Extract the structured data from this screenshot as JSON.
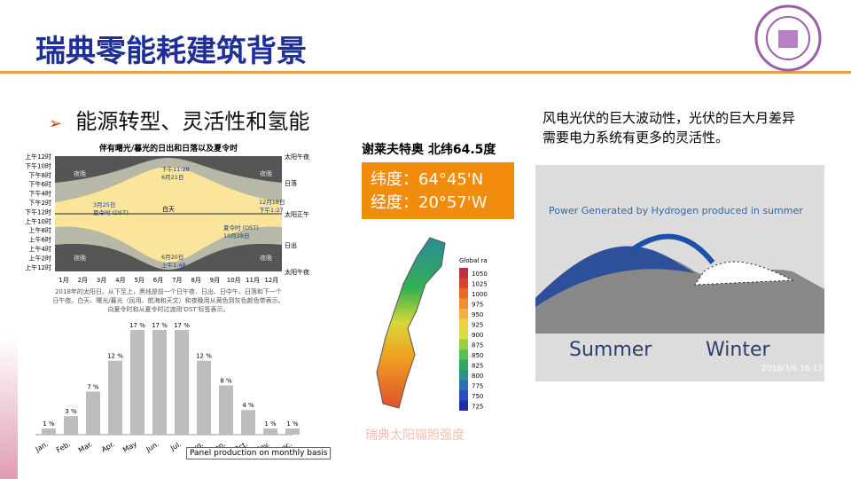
{
  "header": {
    "title": "瑞典零能耗建筑背景"
  },
  "bullet": "能源转型、灵活性和氢能",
  "daylight_chart": {
    "title": "伴有曙光/暮光的日出和日落以及夏令时",
    "left_labels": [
      "上午12时",
      "下午10时",
      "下午8时",
      "下午6时",
      "下午4时",
      "下午2时",
      "下午12时",
      "上午10时",
      "上午8时",
      "上午6时",
      "上午4时",
      "上午2时",
      "上午12时"
    ],
    "right_labels": [
      "太阳午夜",
      "日落",
      "太阳正午",
      "日出",
      "太阳午夜"
    ],
    "months": [
      "1月",
      "2月",
      "3月",
      "4月",
      "5月",
      "6月",
      "7月",
      "8月",
      "9月",
      "10月",
      "11月",
      "12月"
    ],
    "night": "夜晚",
    "day": "白天",
    "notes": [
      "下午11:28",
      "6月21日",
      "3月25日",
      "夏令时 (DST)",
      "夏令时 (DST)",
      "10月28日",
      "12月18日",
      "下午1:27",
      "6月20日",
      "上午1:48"
    ],
    "caption": [
      "2018年的太阳日。从下至上，黑线是前一个日午夜、日出、日中午、日落和下一个",
      "日午夜。白天、曙光/暮光（民用、航海和天文）和夜晚用从黄色到灰色颜色带表示。",
      "向夏令时和从夏令时过渡用'DST'标签表示。"
    ]
  },
  "monthly_chart": {
    "categories": [
      "Jan.",
      "Feb.",
      "Mar.",
      "Apr.",
      "May",
      "Jun.",
      "Jul.",
      "Aug.",
      "Sep.",
      "Oct.",
      "Nov.",
      "Dec."
    ],
    "values": [
      1,
      3,
      7,
      12,
      17,
      17,
      17,
      12,
      8,
      4,
      1,
      1
    ],
    "value_labels": [
      "1 %",
      "3 %",
      "7 %",
      "12 %",
      "17 %",
      "17 %",
      "17 %",
      "12 %",
      "8 %",
      "4 %",
      "1 %",
      "1 %"
    ],
    "caption": "Panel production on monthly basis"
  },
  "map": {
    "title": "谢莱夫特奥 北纬64.5度",
    "latitude": "纬度：64°45'N",
    "longitude": "经度：20°57'W",
    "legend_title": "Global ra",
    "legend": [
      "1050",
      "1025",
      "1000",
      "975",
      "950",
      "925",
      "900",
      "875",
      "850",
      "825",
      "800",
      "775",
      "750",
      "725"
    ],
    "caption": "瑞典太阳辐照强度"
  },
  "note": [
    "风电光伏的巨大波动性，光伏的巨大月差异",
    "需要电力系统有更多的灵活性。"
  ],
  "photo": {
    "title": "Power Generated by Hydrogen produced in summer",
    "summer": "Summer",
    "winter": "Winter",
    "timestamp": "2018/3/6  16:13"
  }
}
